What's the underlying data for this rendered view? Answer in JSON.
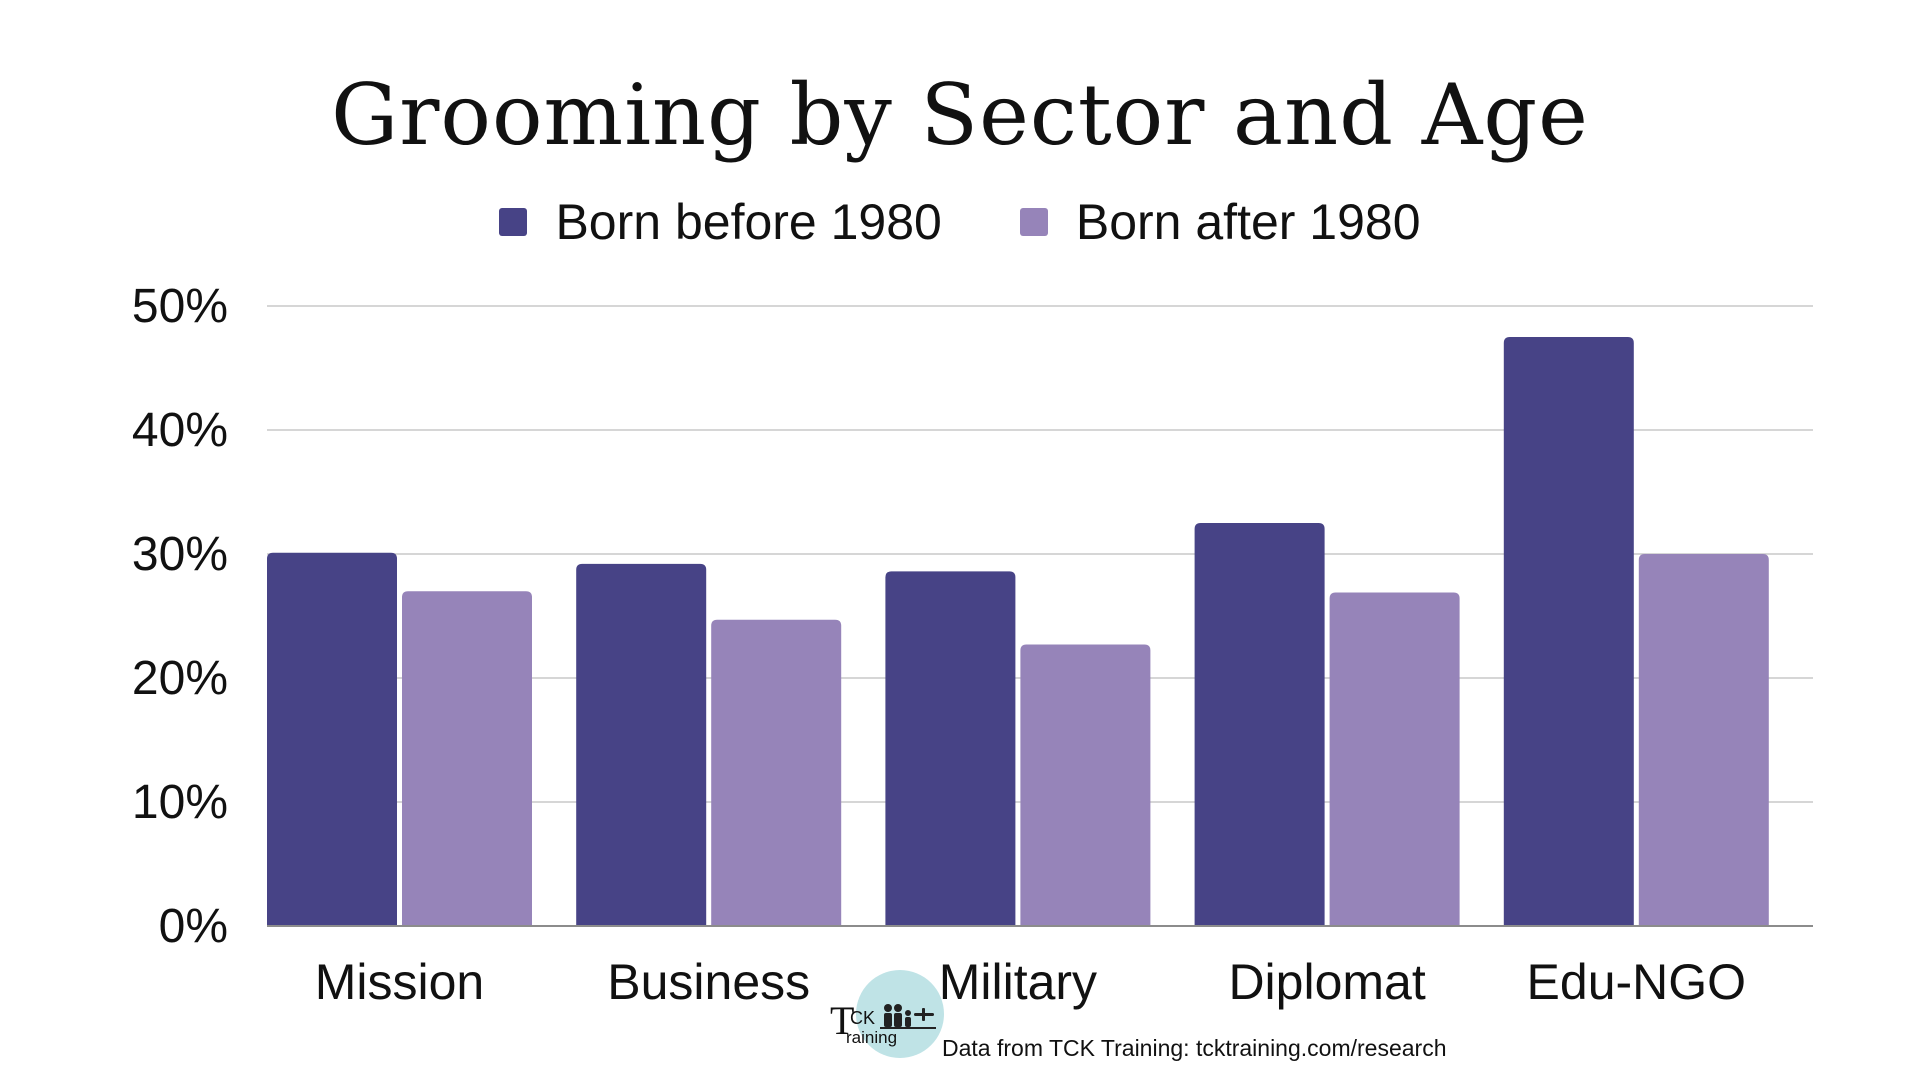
{
  "chart_data": {
    "type": "bar",
    "title": "Grooming by Sector and Age",
    "categories": [
      "Mission",
      "Business",
      "Military",
      "Diplomat",
      "Edu-NGO"
    ],
    "series": [
      {
        "name": "Born before 1980",
        "color": "#474386",
        "values": [
          30.1,
          29.2,
          28.6,
          32.5,
          47.5
        ]
      },
      {
        "name": "Born after 1980",
        "color": "#9684b9",
        "values": [
          27.0,
          24.7,
          22.7,
          26.9,
          30.0
        ]
      }
    ],
    "ylim": [
      0,
      50
    ],
    "yticks": [
      "0%",
      "10%",
      "20%",
      "30%",
      "40%",
      "50%"
    ],
    "ytick_values": [
      0,
      10,
      20,
      30,
      40,
      50
    ],
    "xlabel": "",
    "ylabel": "",
    "grid": true,
    "legend_position": "top-center"
  },
  "logo": {
    "text_main": "CK",
    "text_t": "T",
    "text_sub": "raining"
  },
  "source_note": "Data from TCK Training: tcktraining.com/research",
  "colors": {
    "grid": "#c8c8c8",
    "axis": "#8c8c8c",
    "logo_circle": "#bfe3e6"
  }
}
